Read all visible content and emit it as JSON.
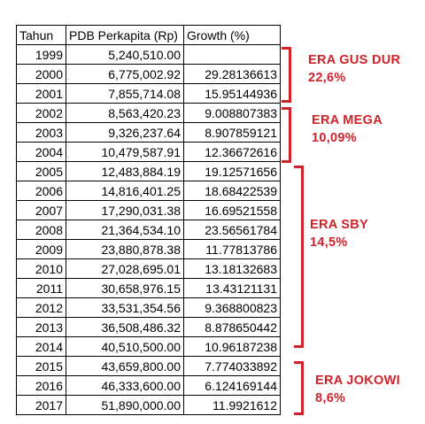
{
  "headers": [
    "Tahun",
    "PDB Perkapita (Rp)",
    "Growth (%)"
  ],
  "rows": [
    [
      "1999",
      "5,240,510.00",
      ""
    ],
    [
      "2000",
      "6,775,002.92",
      "29.28136613"
    ],
    [
      "2001",
      "7,855,714.08",
      "15.95144936"
    ],
    [
      "2002",
      "8,563,420.23",
      "9.008807383"
    ],
    [
      "2003",
      "9,326,237.64",
      "8.907859121"
    ],
    [
      "2004",
      "10,479,587.91",
      "12.36672616"
    ],
    [
      "2005",
      "12,483,884.19",
      "19.12571656"
    ],
    [
      "2006",
      "14,816,401.25",
      "18.68422539"
    ],
    [
      "2007",
      "17,290,031.38",
      "16.69521558"
    ],
    [
      "2008",
      "21,364,534.10",
      "23.56561784"
    ],
    [
      "2009",
      "23,880,878.38",
      "11.77813786"
    ],
    [
      "2010",
      "27,028,695.01",
      "13.18132683"
    ],
    [
      "2011",
      "30,658,976.15",
      "13.43121131"
    ],
    [
      "2012",
      "33,531,354.56",
      "9.368800823"
    ],
    [
      "2013",
      "36,508,486.32",
      "8.878650442"
    ],
    [
      "2014",
      "40,510,500.00",
      "10.96187238"
    ],
    [
      "2015",
      "43,659,800.00",
      "7.774033892"
    ],
    [
      "2016",
      "46,333,600.00",
      "6.124169144"
    ],
    [
      "2017",
      "51,890,000.00",
      "11.9921612"
    ]
  ],
  "eras": [
    {
      "name": "ERA GUS DUR",
      "value": "22,6%"
    },
    {
      "name": "ERA MEGA",
      "value": "10,09%"
    },
    {
      "name": "ERA SBY",
      "value": "14,5%"
    },
    {
      "name": "ERA JOKOWI",
      "value": "8,6%"
    }
  ],
  "accent_color": "#d0222a"
}
